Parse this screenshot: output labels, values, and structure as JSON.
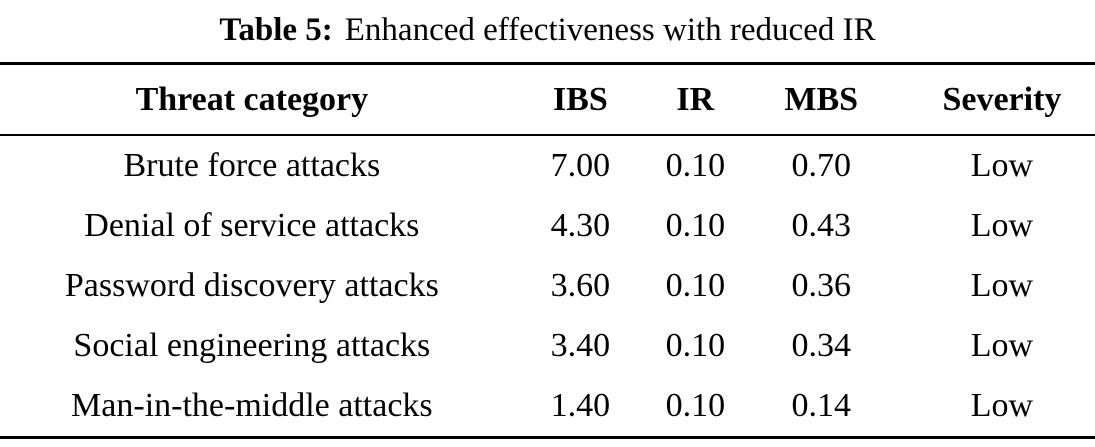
{
  "caption": {
    "label": "Table 5:",
    "text": "Enhanced effectiveness with reduced IR"
  },
  "table": {
    "columns": [
      "Threat category",
      "IBS",
      "IR",
      "MBS",
      "Severity"
    ],
    "rows": [
      [
        "Brute force attacks",
        "7.00",
        "0.10",
        "0.70",
        "Low"
      ],
      [
        "Denial of service attacks",
        "4.30",
        "0.10",
        "0.43",
        "Low"
      ],
      [
        "Password discovery attacks",
        "3.60",
        "0.10",
        "0.36",
        "Low"
      ],
      [
        "Social engineering attacks",
        "3.40",
        "0.10",
        "0.34",
        "Low"
      ],
      [
        "Man-in-the-middle attacks",
        "1.40",
        "0.10",
        "0.14",
        "Low"
      ]
    ]
  },
  "colors": {
    "text": "#000000",
    "background": "#ffffff",
    "rule": "#000000"
  }
}
